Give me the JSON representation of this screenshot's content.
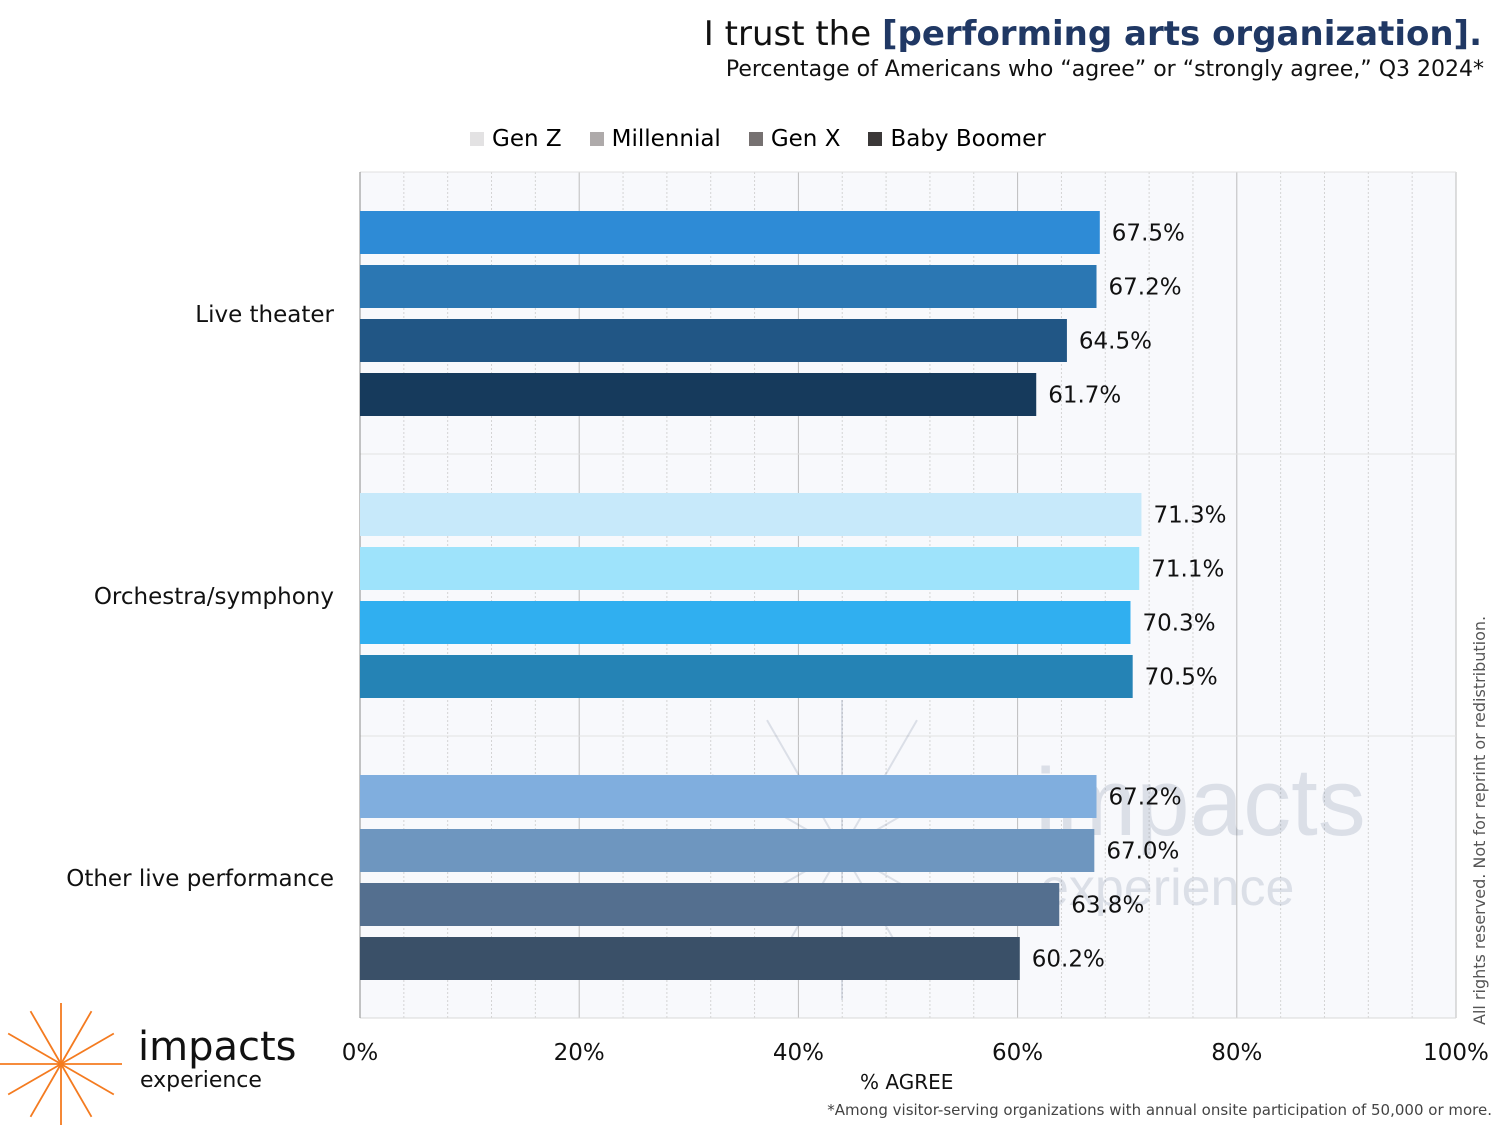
{
  "title": {
    "prefix": "I trust the ",
    "highlight": "[performing arts organization]."
  },
  "subtitle": "Percentage of Americans who “agree” or “strongly agree,” Q3 2024*",
  "footnote": "*Among visitor-serving organizations with annual onsite participation of 50,000 or more.",
  "side_note": "All rights reserved. Not for reprint or redistribution.",
  "logo": {
    "word": "impacts",
    "sub": "experience",
    "color": "#f47b20"
  },
  "chart_data": {
    "type": "bar",
    "orientation": "horizontal",
    "categories": [
      "Live theater",
      "Orchestra/symphony",
      "Other live performance"
    ],
    "series": [
      {
        "name": "Gen Z",
        "legend_color": "#e3e2e3",
        "values": [
          67.5,
          71.3,
          67.2
        ],
        "colors": [
          "#2e8bd6",
          "#c7e9fa",
          "#80aede"
        ]
      },
      {
        "name": "Millennial",
        "legend_color": "#aeaaaa",
        "values": [
          67.2,
          71.1,
          67.0
        ],
        "colors": [
          "#2b77b3",
          "#9ee3fb",
          "#6e96bf"
        ]
      },
      {
        "name": "Gen X",
        "legend_color": "#767171",
        "values": [
          64.5,
          70.3,
          63.8
        ],
        "colors": [
          "#215685",
          "#30aff0",
          "#546f8f"
        ]
      },
      {
        "name": "Baby Boomer",
        "legend_color": "#3b3838",
        "values": [
          61.7,
          70.5,
          60.2
        ],
        "colors": [
          "#163a5c",
          "#2583b5",
          "#3a5068"
        ]
      }
    ],
    "xlabel": "% AGREE",
    "ylabel": "",
    "xlim": [
      0,
      100
    ],
    "xticks": [
      "0%",
      "20%",
      "40%",
      "60%",
      "80%",
      "100%"
    ],
    "grid": true,
    "legend_position": "top"
  }
}
